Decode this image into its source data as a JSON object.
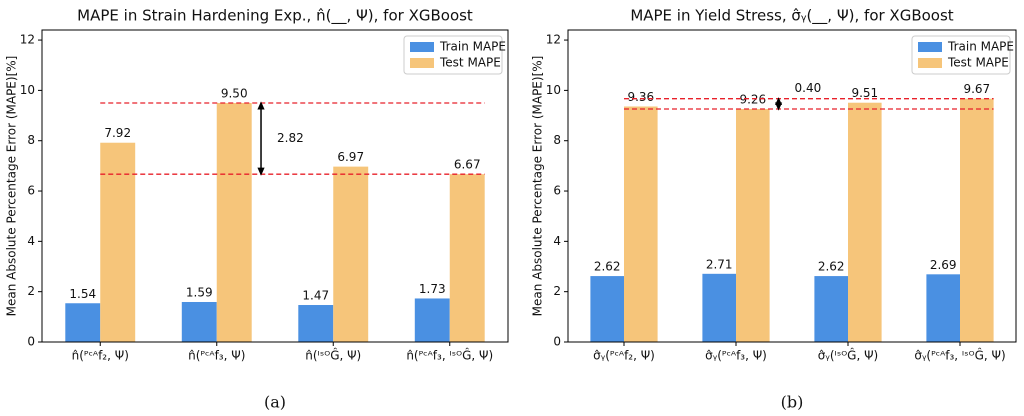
{
  "chart_data": [
    {
      "type": "bar",
      "title": "MAPE in Strain Hardening Exp., n̂(__, Ψ), for XGBoost",
      "y_label": "Mean Absolute Percentage Error (MAPE)[%]",
      "categories": [
        "n̂(ᴾᶜᴬf₂, Ψ)",
        "n̂(ᴾᶜᴬf₃, Ψ)",
        "n̂(ᴵˢᴼĜ, Ψ)",
        "n̂(ᴾᶜᴬf₃, ᴵˢᴼĜ, Ψ)"
      ],
      "series": [
        {
          "name": "Train MAPE",
          "color": "#4a90e2",
          "values": [
            1.54,
            1.59,
            1.47,
            1.73
          ],
          "value_labels": [
            "1.54",
            "1.59",
            "1.47",
            "1.73"
          ]
        },
        {
          "name": "Test MAPE",
          "color": "#f6c57a",
          "values": [
            7.92,
            9.5,
            6.97,
            6.67
          ],
          "value_labels": [
            "7.92",
            "9.50",
            "6.97",
            "6.67"
          ]
        }
      ],
      "ylim": [
        0,
        12.4
      ],
      "yticks": [
        0,
        2,
        4,
        6,
        8,
        10,
        12
      ],
      "reference_lines": [
        9.5,
        6.67
      ],
      "reference_color": "#e8202a",
      "annotation": "2.82",
      "legend": "upper right",
      "caption": "(a)"
    },
    {
      "type": "bar",
      "title": "MAPE in Yield Stress, σ̂ᵧ(__, Ψ), for XGBoost",
      "y_label": "Mean Absolute Percentage Error (MAPE)[%]",
      "categories": [
        "σ̂ᵧ(ᴾᶜᴬf₂, Ψ)",
        "σ̂ᵧ(ᴾᶜᴬf₃, Ψ)",
        "σ̂ᵧ(ᴵˢᴼĜ, Ψ)",
        "σ̂ᵧ(ᴾᶜᴬf₃, ᴵˢᴼĜ, Ψ)"
      ],
      "series": [
        {
          "name": "Train MAPE",
          "color": "#4a90e2",
          "values": [
            2.62,
            2.71,
            2.62,
            2.69
          ],
          "value_labels": [
            "2.62",
            "2.71",
            "2.62",
            "2.69"
          ]
        },
        {
          "name": "Test MAPE",
          "color": "#f6c57a",
          "values": [
            9.36,
            9.26,
            9.51,
            9.67
          ],
          "value_labels": [
            "9.36",
            "9.26",
            "9.51",
            "9.67"
          ]
        }
      ],
      "ylim": [
        0,
        12.4
      ],
      "yticks": [
        0,
        2,
        4,
        6,
        8,
        10,
        12
      ],
      "reference_lines": [
        9.67,
        9.26
      ],
      "reference_color": "#e8202a",
      "annotation": "0.40",
      "legend": "upper right",
      "caption": "(b)"
    }
  ]
}
